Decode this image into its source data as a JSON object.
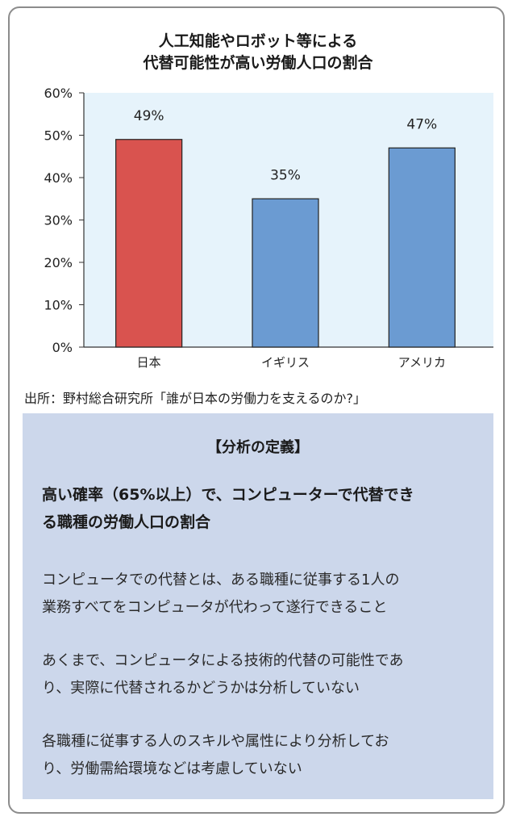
{
  "chart_data": {
    "type": "bar",
    "title_lines": [
      "人工知能やロボット等による",
      "代替可能性が高い労働人口の割合"
    ],
    "categories": [
      "日本",
      "イギリス",
      "アメリカ"
    ],
    "values": [
      49,
      35,
      47
    ],
    "data_labels": [
      "49%",
      "35%",
      "47%"
    ],
    "bar_colors": [
      "#d9534f",
      "#6b9bd2",
      "#6b9bd2"
    ],
    "ylim": [
      0,
      60
    ],
    "yticks": [
      0,
      10,
      20,
      30,
      40,
      50,
      60
    ],
    "ytick_labels": [
      "0%",
      "10%",
      "20%",
      "30%",
      "40%",
      "50%",
      "60%"
    ],
    "plot_background": "#e6f3fb",
    "grid": false
  },
  "source_text": "出所：野村総合研究所「誰が日本の労働力を支えるのか?」",
  "definition": {
    "heading": "【分析の定義】",
    "lead_lines": [
      "高い確率（65%以上）で、コンピューターで代替でき",
      "る職種の労働人口の割合"
    ],
    "paragraphs": [
      [
        "コンピュータでの代替とは、ある職種に従事する1人の",
        "業務すべてをコンピュータが代わって遂行できること"
      ],
      [
        "あくまで、コンピュータによる技術的代替の可能性であ",
        "り、実際に代替されるかどうかは分析していない"
      ],
      [
        "各職種に従事する人のスキルや属性により分析してお",
        "り、労働需給環境などは考慮していない"
      ]
    ]
  }
}
